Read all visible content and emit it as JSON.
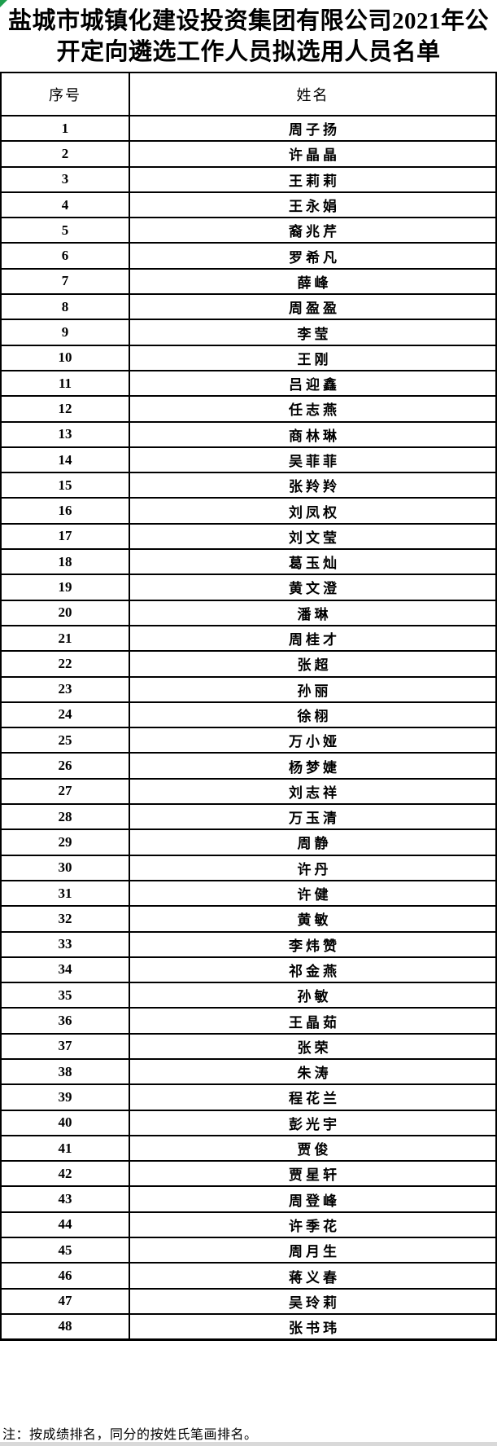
{
  "page": {
    "title": "盐城市城镇化建设投资集团有限公司2021年公开定向遴选工作人员拟选用人员名单",
    "note": "注：按成绩排名，同分的按姓氏笔画排名。",
    "corner_marker_color": "#1e9e4e",
    "bottom_strip_color": "#d9d9d9"
  },
  "table": {
    "headers": [
      "序号",
      "姓名"
    ],
    "rows": [
      {
        "no": "1",
        "name": "周子扬"
      },
      {
        "no": "2",
        "name": "许晶晶"
      },
      {
        "no": "3",
        "name": "王莉莉"
      },
      {
        "no": "4",
        "name": "王永娟"
      },
      {
        "no": "5",
        "name": "裔兆芹"
      },
      {
        "no": "6",
        "name": "罗希凡"
      },
      {
        "no": "7",
        "name": "薛峰"
      },
      {
        "no": "8",
        "name": "周盈盈"
      },
      {
        "no": "9",
        "name": "李莹"
      },
      {
        "no": "10",
        "name": "王刚"
      },
      {
        "no": "11",
        "name": "吕迎鑫"
      },
      {
        "no": "12",
        "name": "任志燕"
      },
      {
        "no": "13",
        "name": "商林琳"
      },
      {
        "no": "14",
        "name": "吴菲菲"
      },
      {
        "no": "15",
        "name": "张羚羚"
      },
      {
        "no": "16",
        "name": "刘凤权"
      },
      {
        "no": "17",
        "name": "刘文莹"
      },
      {
        "no": "18",
        "name": "葛玉灿"
      },
      {
        "no": "19",
        "name": "黄文澄"
      },
      {
        "no": "20",
        "name": "潘琳"
      },
      {
        "no": "21",
        "name": "周桂才"
      },
      {
        "no": "22",
        "name": "张超"
      },
      {
        "no": "23",
        "name": "孙丽"
      },
      {
        "no": "24",
        "name": "徐栩"
      },
      {
        "no": "25",
        "name": "万小娅"
      },
      {
        "no": "26",
        "name": "杨梦婕"
      },
      {
        "no": "27",
        "name": "刘志祥"
      },
      {
        "no": "28",
        "name": "万玉清"
      },
      {
        "no": "29",
        "name": "周静"
      },
      {
        "no": "30",
        "name": "许丹"
      },
      {
        "no": "31",
        "name": "许健"
      },
      {
        "no": "32",
        "name": "黄敏"
      },
      {
        "no": "33",
        "name": "李炜赞"
      },
      {
        "no": "34",
        "name": "祁金燕"
      },
      {
        "no": "35",
        "name": "孙敏"
      },
      {
        "no": "36",
        "name": "王晶茹"
      },
      {
        "no": "37",
        "name": "张荣"
      },
      {
        "no": "38",
        "name": "朱涛"
      },
      {
        "no": "39",
        "name": "程花兰"
      },
      {
        "no": "40",
        "name": "彭光宇"
      },
      {
        "no": "41",
        "name": "贾俊"
      },
      {
        "no": "42",
        "name": "贾星轩"
      },
      {
        "no": "43",
        "name": "周登峰"
      },
      {
        "no": "44",
        "name": "许季花"
      },
      {
        "no": "45",
        "name": "周月生"
      },
      {
        "no": "46",
        "name": "蒋义春"
      },
      {
        "no": "47",
        "name": "吴玲莉"
      },
      {
        "no": "48",
        "name": "张书玮"
      }
    ]
  }
}
